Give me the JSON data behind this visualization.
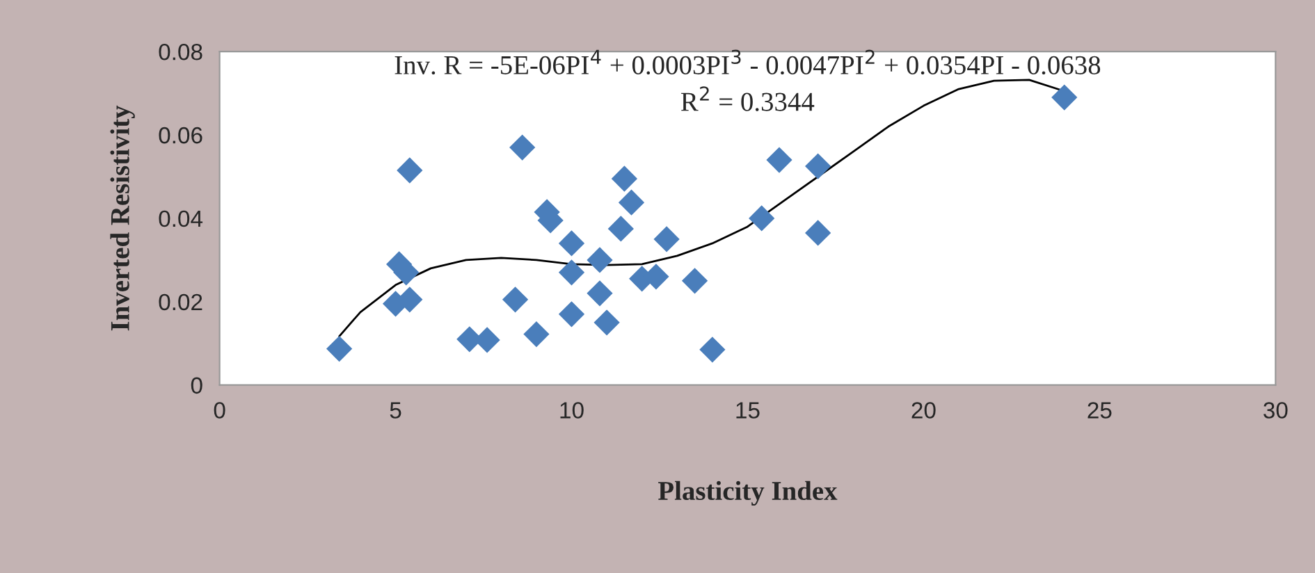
{
  "chart_data": {
    "type": "scatter",
    "xlabel": "Plasticity Index",
    "ylabel": "Inverted Resistivity",
    "annotations": [
      "Inv. R = -5E-06PI$^{4}$ + 0.0003PI$^{3}$ - 0.0047PI$^{2}$ + 0.0354PI - 0.0638",
      "R$^{2}$ = 0.3344"
    ],
    "xlim": [
      0,
      30
    ],
    "xticks": [
      0,
      5,
      10,
      15,
      20,
      25,
      30
    ],
    "ylim": [
      0,
      0.08
    ],
    "yticks": [
      0,
      0.02,
      0.04,
      0.06,
      0.08
    ],
    "marker": "diamond",
    "grid": false,
    "series": [
      {
        "color": "#4a7ebb",
        "x": [
          3.4,
          5.0,
          5.1,
          5.3,
          5.4,
          5.4,
          7.1,
          7.6,
          8.4,
          8.6,
          9.0,
          9.3,
          9.4,
          10.0,
          10.0,
          10.0,
          10.8,
          10.8,
          11.0,
          11.4,
          11.5,
          11.7,
          12.0,
          12.4,
          12.7,
          13.5,
          14.0,
          15.4,
          15.9,
          17.0,
          17.0,
          24.0
        ],
        "values": [
          0.0087,
          0.0195,
          0.029,
          0.027,
          0.0205,
          0.0515,
          0.011,
          0.0108,
          0.0205,
          0.057,
          0.0122,
          0.0415,
          0.0395,
          0.034,
          0.027,
          0.017,
          0.03,
          0.022,
          0.015,
          0.0375,
          0.0495,
          0.0438,
          0.0255,
          0.026,
          0.035,
          0.025,
          0.0085,
          0.04,
          0.054,
          0.0525,
          0.0365,
          0.069
        ]
      },
      {
        "type": "line",
        "color": "#000000",
        "marker": "none",
        "x": [
          3.4,
          4,
          5,
          6,
          7,
          8,
          9,
          10,
          11,
          12,
          13,
          14,
          15,
          16,
          17,
          18,
          19,
          20,
          21,
          22,
          23,
          24
        ],
        "values": [
          0.0117,
          0.0175,
          0.024,
          0.028,
          0.03,
          0.0305,
          0.03,
          0.029,
          0.0288,
          0.029,
          0.031,
          0.034,
          0.038,
          0.044,
          0.05,
          0.056,
          0.062,
          0.067,
          0.071,
          0.073,
          0.0732,
          0.0705
        ]
      }
    ]
  }
}
